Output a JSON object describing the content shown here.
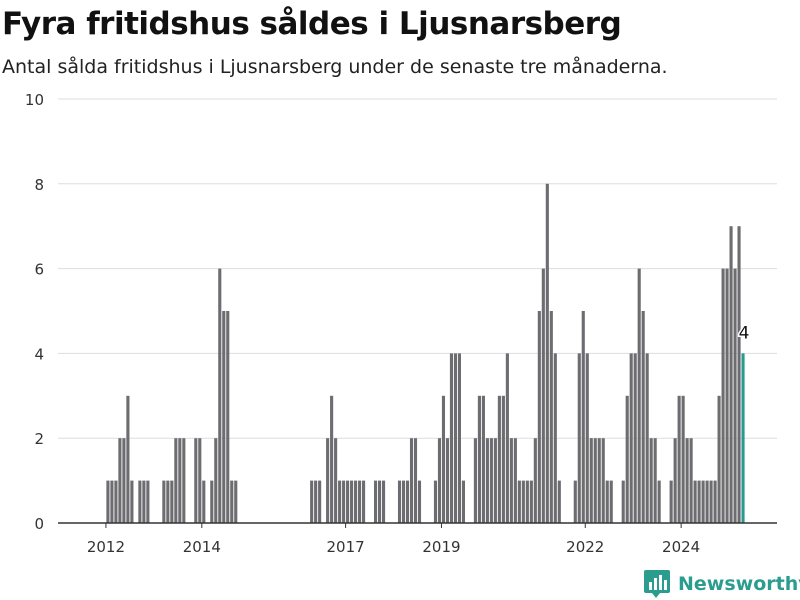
{
  "header": {
    "title": "Fyra fritidshus såldes i Ljusnarsberg",
    "subtitle": "Antal sålda fritidshus i Ljusnarsberg under de senaste tre månaderna."
  },
  "brand": {
    "name": "Newsworthy",
    "color": "#2a9d8f"
  },
  "colors": {
    "bar": "#6d6c71",
    "highlight": "#2a9a8e",
    "grid": "#dddddd",
    "axis": "#333333"
  },
  "chart_data": {
    "type": "bar",
    "ylim": [
      0,
      10
    ],
    "y_ticks": [
      0,
      2,
      4,
      6,
      8,
      10
    ],
    "x_start": "2011-01",
    "x_end": "2025-12",
    "x_ticks": [
      {
        "label": "2012",
        "at": "2012-01"
      },
      {
        "label": "2014",
        "at": "2014-01"
      },
      {
        "label": "2017",
        "at": "2017-01"
      },
      {
        "label": "2019",
        "at": "2019-01"
      },
      {
        "label": "2022",
        "at": "2022-01"
      },
      {
        "label": "2024",
        "at": "2024-01"
      }
    ],
    "bars": [
      [
        "2012-01",
        1
      ],
      [
        "2012-02",
        1
      ],
      [
        "2012-03",
        1
      ],
      [
        "2012-04",
        2
      ],
      [
        "2012-05",
        2
      ],
      [
        "2012-06",
        3
      ],
      [
        "2012-07",
        1
      ],
      [
        "2012-08",
        0
      ],
      [
        "2012-09",
        1
      ],
      [
        "2012-10",
        1
      ],
      [
        "2012-11",
        1
      ],
      [
        "2012-12",
        0
      ],
      [
        "2013-01",
        0
      ],
      [
        "2013-02",
        0
      ],
      [
        "2013-03",
        1
      ],
      [
        "2013-04",
        1
      ],
      [
        "2013-05",
        1
      ],
      [
        "2013-06",
        2
      ],
      [
        "2013-07",
        2
      ],
      [
        "2013-08",
        2
      ],
      [
        "2013-09",
        0
      ],
      [
        "2013-10",
        0
      ],
      [
        "2013-11",
        2
      ],
      [
        "2013-12",
        2
      ],
      [
        "2014-01",
        1
      ],
      [
        "2014-02",
        0
      ],
      [
        "2014-03",
        1
      ],
      [
        "2014-04",
        2
      ],
      [
        "2014-05",
        6
      ],
      [
        "2014-06",
        5
      ],
      [
        "2014-07",
        5
      ],
      [
        "2014-08",
        1
      ],
      [
        "2014-09",
        1
      ],
      [
        "2014-10",
        0
      ],
      [
        "2014-11",
        0
      ],
      [
        "2014-12",
        0
      ],
      [
        "2015-01",
        0
      ],
      [
        "2015-02",
        0
      ],
      [
        "2015-03",
        0
      ],
      [
        "2015-04",
        0
      ],
      [
        "2015-05",
        0
      ],
      [
        "2015-06",
        0
      ],
      [
        "2015-07",
        0
      ],
      [
        "2015-08",
        0
      ],
      [
        "2015-09",
        0
      ],
      [
        "2015-10",
        0
      ],
      [
        "2015-11",
        0
      ],
      [
        "2015-12",
        0
      ],
      [
        "2016-01",
        0
      ],
      [
        "2016-02",
        0
      ],
      [
        "2016-03",
        0
      ],
      [
        "2016-04",
        1
      ],
      [
        "2016-05",
        1
      ],
      [
        "2016-06",
        1
      ],
      [
        "2016-07",
        0
      ],
      [
        "2016-08",
        2
      ],
      [
        "2016-09",
        3
      ],
      [
        "2016-10",
        2
      ],
      [
        "2016-11",
        1
      ],
      [
        "2016-12",
        1
      ],
      [
        "2017-01",
        1
      ],
      [
        "2017-02",
        1
      ],
      [
        "2017-03",
        1
      ],
      [
        "2017-04",
        1
      ],
      [
        "2017-05",
        1
      ],
      [
        "2017-06",
        0
      ],
      [
        "2017-07",
        0
      ],
      [
        "2017-08",
        1
      ],
      [
        "2017-09",
        1
      ],
      [
        "2017-10",
        1
      ],
      [
        "2017-11",
        0
      ],
      [
        "2017-12",
        0
      ],
      [
        "2018-01",
        0
      ],
      [
        "2018-02",
        1
      ],
      [
        "2018-03",
        1
      ],
      [
        "2018-04",
        1
      ],
      [
        "2018-05",
        2
      ],
      [
        "2018-06",
        2
      ],
      [
        "2018-07",
        1
      ],
      [
        "2018-08",
        0
      ],
      [
        "2018-09",
        0
      ],
      [
        "2018-10",
        0
      ],
      [
        "2018-11",
        1
      ],
      [
        "2018-12",
        2
      ],
      [
        "2019-01",
        3
      ],
      [
        "2019-02",
        2
      ],
      [
        "2019-03",
        4
      ],
      [
        "2019-04",
        4
      ],
      [
        "2019-05",
        4
      ],
      [
        "2019-06",
        1
      ],
      [
        "2019-07",
        0
      ],
      [
        "2019-08",
        0
      ],
      [
        "2019-09",
        2
      ],
      [
        "2019-10",
        3
      ],
      [
        "2019-11",
        3
      ],
      [
        "2019-12",
        2
      ],
      [
        "2020-01",
        2
      ],
      [
        "2020-02",
        2
      ],
      [
        "2020-03",
        3
      ],
      [
        "2020-04",
        3
      ],
      [
        "2020-05",
        4
      ],
      [
        "2020-06",
        2
      ],
      [
        "2020-07",
        2
      ],
      [
        "2020-08",
        1
      ],
      [
        "2020-09",
        1
      ],
      [
        "2020-10",
        1
      ],
      [
        "2020-11",
        1
      ],
      [
        "2020-12",
        2
      ],
      [
        "2021-01",
        5
      ],
      [
        "2021-02",
        6
      ],
      [
        "2021-03",
        8
      ],
      [
        "2021-04",
        5
      ],
      [
        "2021-05",
        4
      ],
      [
        "2021-06",
        1
      ],
      [
        "2021-07",
        0
      ],
      [
        "2021-08",
        0
      ],
      [
        "2021-09",
        0
      ],
      [
        "2021-10",
        1
      ],
      [
        "2021-11",
        4
      ],
      [
        "2021-12",
        5
      ],
      [
        "2022-01",
        4
      ],
      [
        "2022-02",
        2
      ],
      [
        "2022-03",
        2
      ],
      [
        "2022-04",
        2
      ],
      [
        "2022-05",
        2
      ],
      [
        "2022-06",
        1
      ],
      [
        "2022-07",
        1
      ],
      [
        "2022-08",
        0
      ],
      [
        "2022-09",
        0
      ],
      [
        "2022-10",
        1
      ],
      [
        "2022-11",
        3
      ],
      [
        "2022-12",
        4
      ],
      [
        "2023-01",
        4
      ],
      [
        "2023-02",
        6
      ],
      [
        "2023-03",
        5
      ],
      [
        "2023-04",
        4
      ],
      [
        "2023-05",
        2
      ],
      [
        "2023-06",
        2
      ],
      [
        "2023-07",
        1
      ],
      [
        "2023-08",
        0
      ],
      [
        "2023-09",
        0
      ],
      [
        "2023-10",
        1
      ],
      [
        "2023-11",
        2
      ],
      [
        "2023-12",
        3
      ],
      [
        "2024-01",
        3
      ],
      [
        "2024-02",
        2
      ],
      [
        "2024-03",
        2
      ],
      [
        "2024-04",
        1
      ],
      [
        "2024-05",
        1
      ],
      [
        "2024-06",
        1
      ],
      [
        "2024-07",
        1
      ],
      [
        "2024-08",
        1
      ],
      [
        "2024-09",
        1
      ],
      [
        "2024-10",
        3
      ],
      [
        "2024-11",
        6
      ],
      [
        "2024-12",
        6
      ],
      [
        "2025-01",
        7
      ],
      [
        "2025-02",
        6
      ],
      [
        "2025-03",
        7
      ],
      [
        "2025-04",
        4
      ]
    ],
    "highlight": {
      "x": "2025-04",
      "value": 4,
      "label": "4"
    }
  }
}
